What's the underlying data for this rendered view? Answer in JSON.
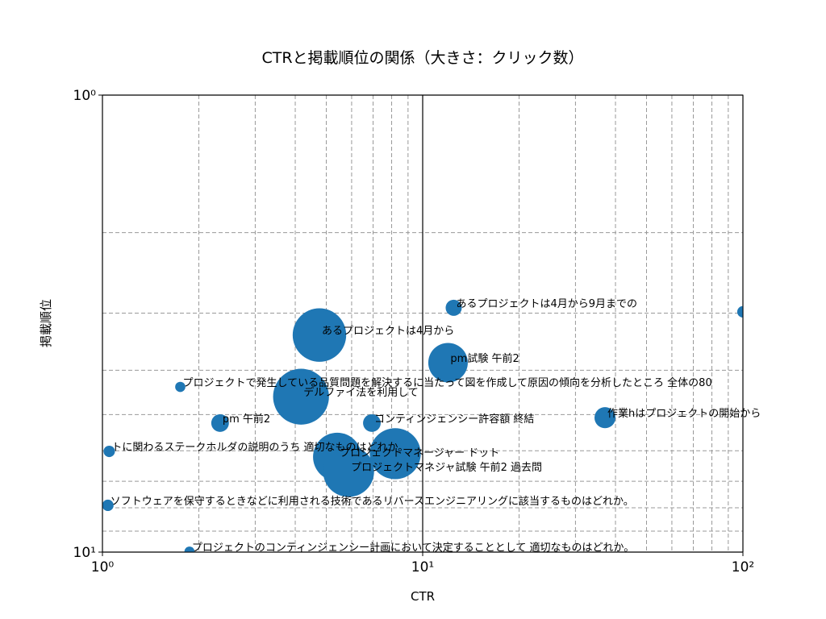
{
  "chart_data": {
    "type": "scatter",
    "title": "CTRと掲載順位の関係（大きさ：クリック数）",
    "xlabel": "CTR",
    "ylabel": "掲載順位",
    "xscale": "log",
    "yscale": "log",
    "xlim": [
      1,
      100
    ],
    "ylim": [
      10,
      1
    ],
    "xticks": [
      {
        "value": 1,
        "label": "10⁰"
      },
      {
        "value": 10,
        "label": "10¹"
      },
      {
        "value": 100,
        "label": "10²"
      }
    ],
    "yticks": [
      {
        "value": 1,
        "label": "10⁰"
      },
      {
        "value": 10,
        "label": "10¹"
      }
    ],
    "xminorticks": [
      2,
      3,
      4,
      5,
      6,
      7,
      8,
      9,
      20,
      30,
      40,
      50,
      60,
      70,
      80,
      90
    ],
    "yminorticks": [
      2,
      3,
      4,
      5,
      6,
      7,
      8,
      9
    ],
    "grid": true,
    "color": "#1f77b4",
    "x": [
      12.5,
      100,
      4.76,
      12.0,
      1.75,
      4.17,
      37.1,
      2.33,
      6.94,
      1.05,
      5.41,
      8.21,
      5.87,
      1.04,
      1.87
    ],
    "y": [
      2.92,
      2.98,
      3.35,
      3.85,
      4.35,
      4.57,
      5.08,
      5.22,
      5.22,
      6.02,
      6.19,
      6.09,
      6.66,
      7.9,
      9.98
    ],
    "sizes": [
      100,
      50,
      1100,
      600,
      40,
      1200,
      170,
      120,
      120,
      50,
      900,
      1000,
      1000,
      50,
      40
    ],
    "labels": [
      "あるプロジェクトは4月から9月までの",
      null,
      "あるプロジェクトは4月から",
      "pm試験 午前2",
      "プロジェクトで発生している品質問題を解決するに当たって図を作成して原因の傾向を分析したところ 全体の80",
      "デルファイ法を利用して",
      "作業hはプロジェクトの開始から",
      "pm 午前2",
      "コンティンジェンシー許容額 終結",
      "トに関わるステークホルダの説明のうち 適切なものはどれか。",
      "プロジェクトマネージャー ドット",
      null,
      "プロジェクトマネジャ試験 午前2 過去問",
      "ソフトウェアを保守するときなどに利用される技術であるリバースエンジニアリングに該当するものはどれか。",
      "プロジェクトのコンティンジェンシー計画において決定することとして 適切なものはどれか。"
    ]
  }
}
